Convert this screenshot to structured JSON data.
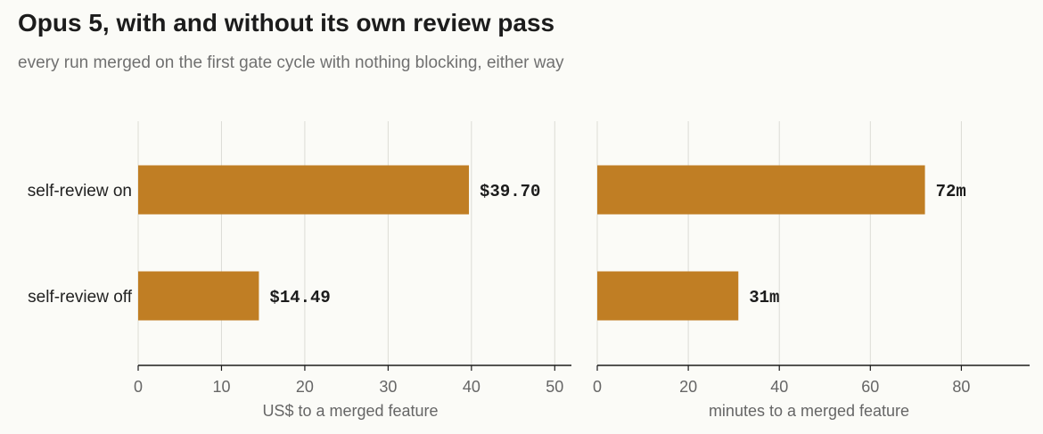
{
  "title": "Opus 5, with and without its own review pass",
  "subtitle": "every run merged on the first gate cycle with nothing blocking, either way",
  "colors": {
    "bar": "#c07e24",
    "grid": "#dcdcd6",
    "axis": "#1c1c1c",
    "background": "#fbfbf7"
  },
  "chart_data": [
    {
      "type": "bar",
      "orientation": "horizontal",
      "categories": [
        "self-review on",
        "self-review off"
      ],
      "values": [
        39.7,
        14.49
      ],
      "value_labels": [
        "$39.70",
        "$14.49"
      ],
      "xlabel": "US$ to a merged feature",
      "xlim": [
        0,
        52
      ],
      "ticks": [
        0,
        10,
        20,
        30,
        40,
        50
      ],
      "tick_labels": [
        "0",
        "10",
        "20",
        "30",
        "40",
        "50"
      ],
      "grid": true
    },
    {
      "type": "bar",
      "orientation": "horizontal",
      "categories": [
        "self-review on",
        "self-review off"
      ],
      "values": [
        72,
        31
      ],
      "value_labels": [
        "72m",
        "31m"
      ],
      "xlabel": "minutes to a merged feature",
      "xlim": [
        0,
        95
      ],
      "ticks": [
        0,
        20,
        40,
        60,
        80
      ],
      "tick_labels": [
        "0",
        "20",
        "40",
        "60",
        "80"
      ],
      "grid": true
    }
  ]
}
